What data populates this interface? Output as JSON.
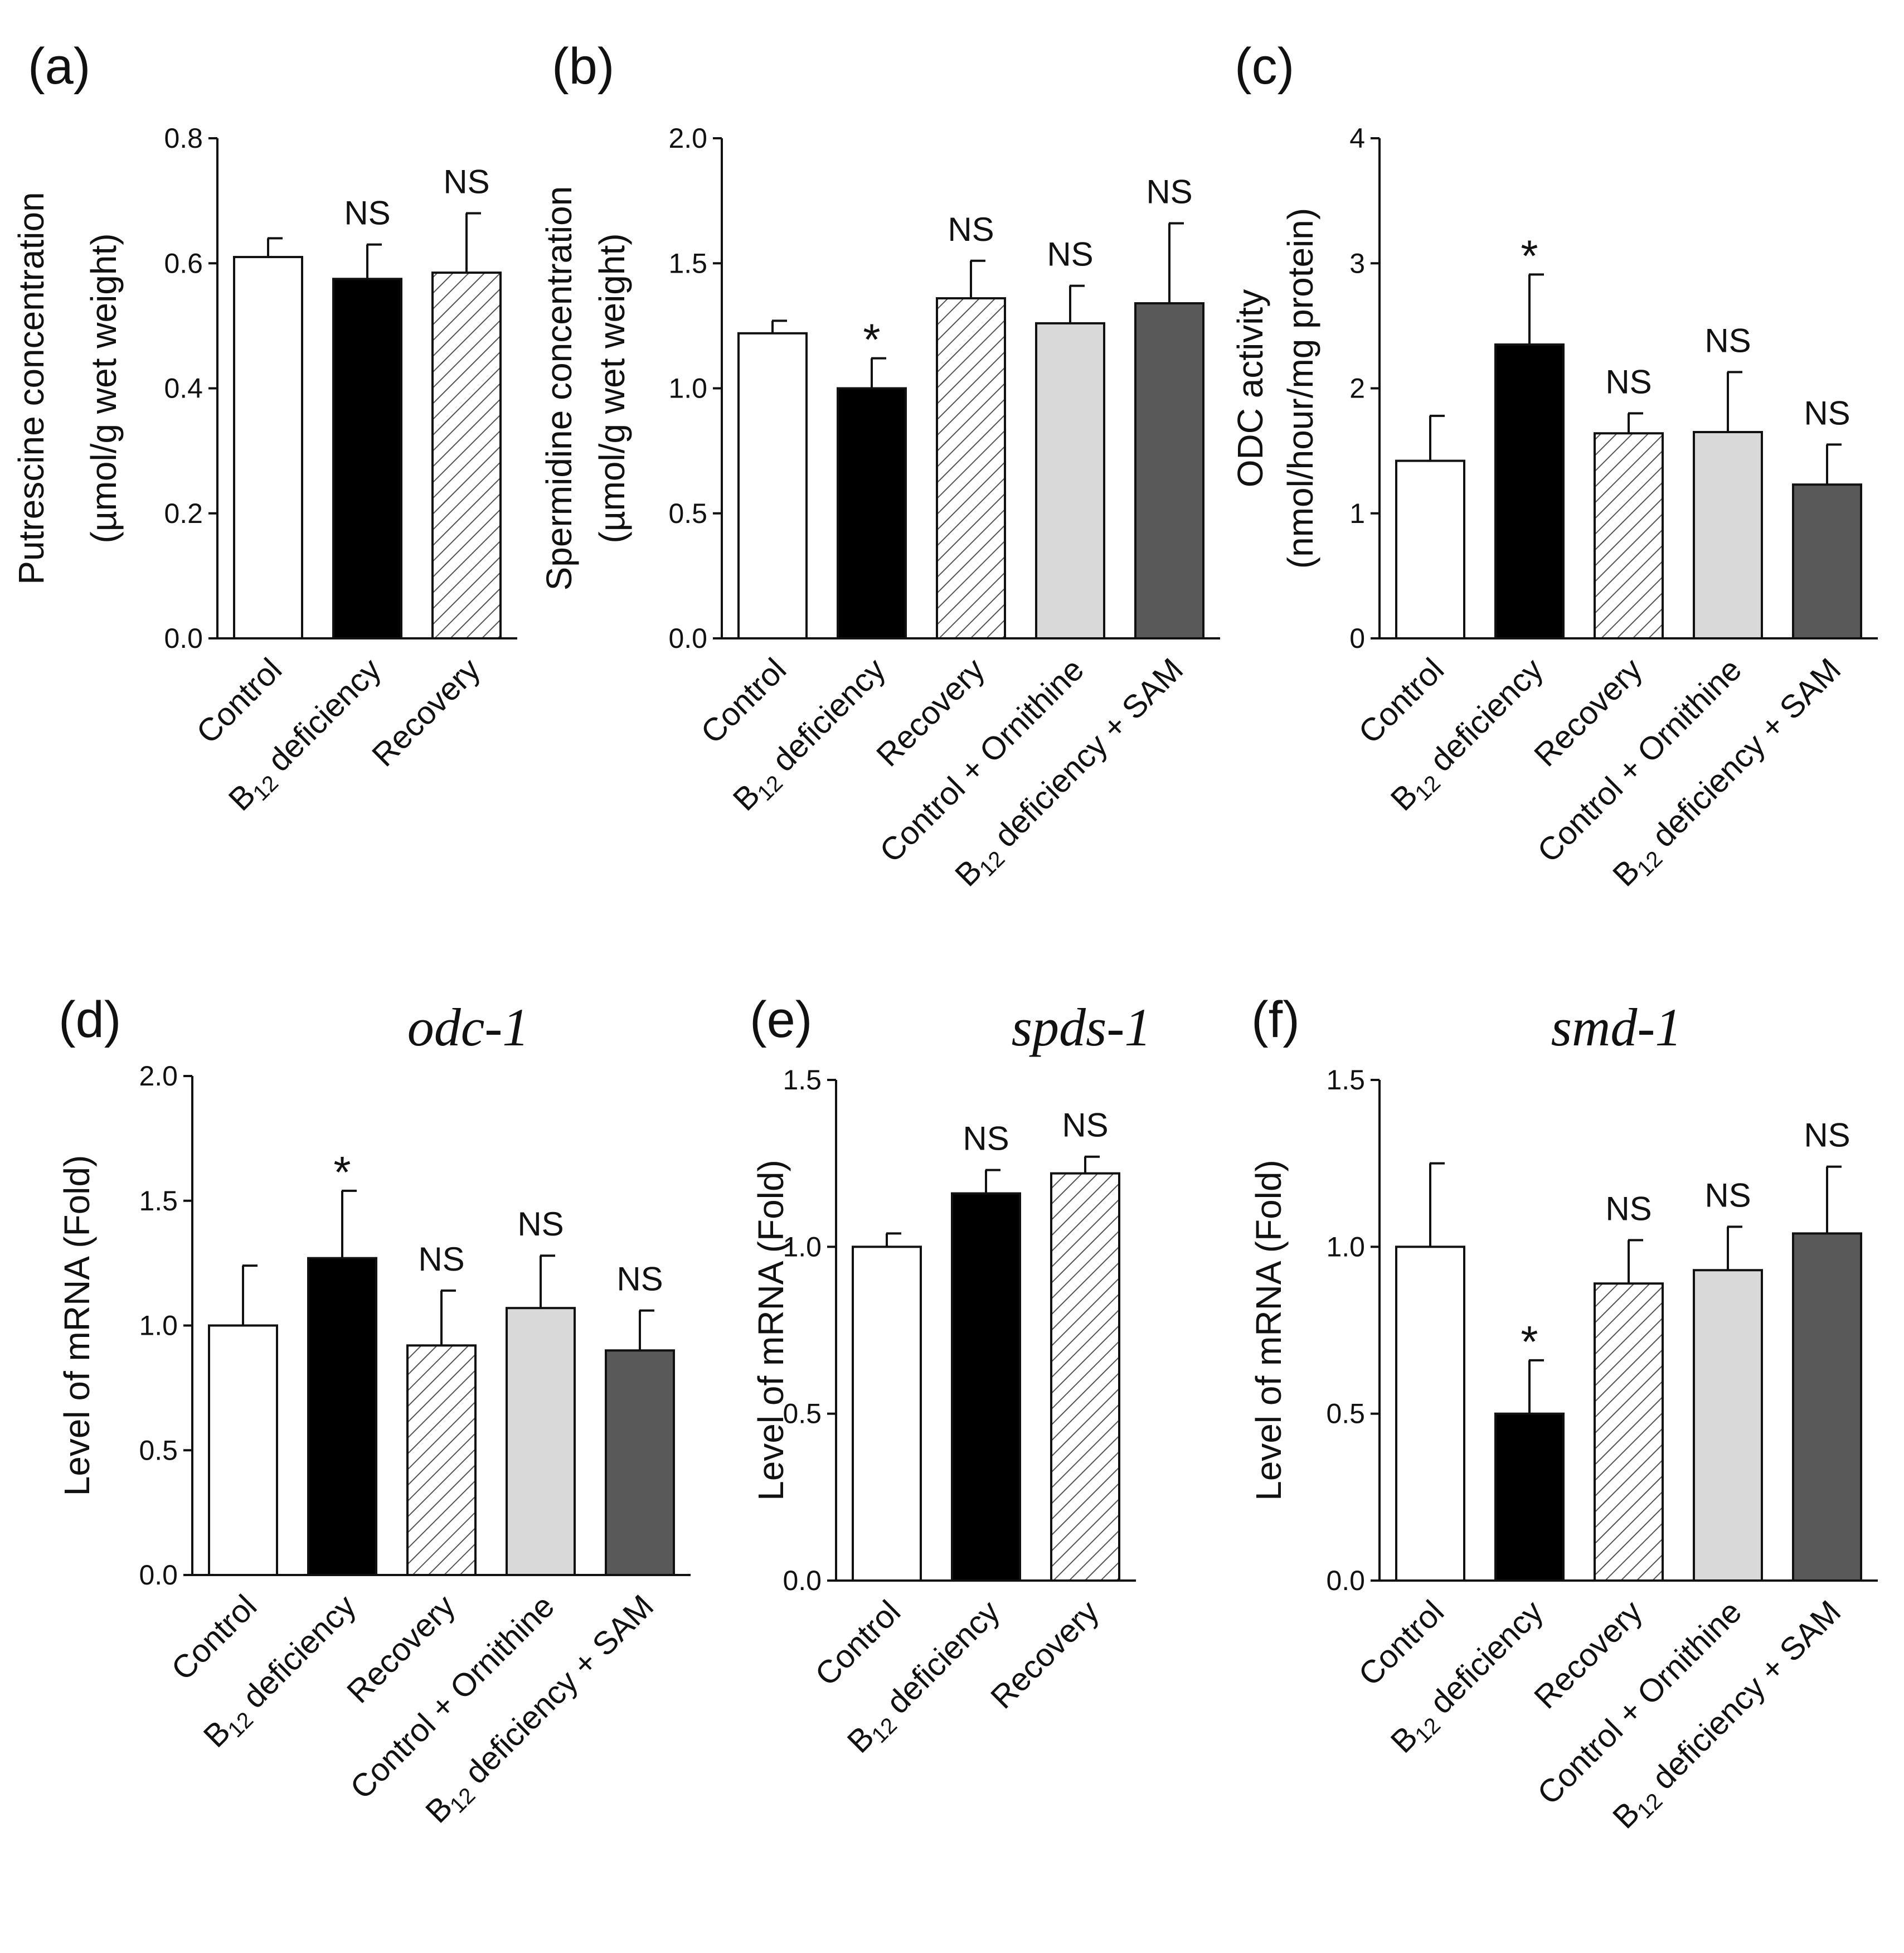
{
  "chart_data": [
    {
      "panel": "(a)",
      "type": "bar",
      "title": "",
      "ylabel": [
        "Putrescine  concentration",
        "(µmol/g wet weight)"
      ],
      "ylim": [
        0,
        0.8
      ],
      "yticks": [
        "0.0",
        "0.2",
        "0.4",
        "0.6",
        "0.8"
      ],
      "categories": [
        "Control",
        "B12 deficiency",
        "Recovery"
      ],
      "values": [
        0.61,
        0.575,
        0.585
      ],
      "errors": [
        0.03,
        0.055,
        0.095
      ],
      "fills": [
        "white",
        "black",
        "hatch"
      ],
      "annotations": [
        "",
        "NS",
        "NS"
      ]
    },
    {
      "panel": "(b)",
      "type": "bar",
      "title": "",
      "ylabel": [
        "Spermidine  concentration",
        "(µmol/g wet weight)"
      ],
      "ylim": [
        0,
        2.0
      ],
      "yticks": [
        "0.0",
        "0.5",
        "1.0",
        "1.5",
        "2.0"
      ],
      "categories": [
        "Control",
        "B12 deficiency",
        "Recovery",
        "Control + Ornithine",
        "B12 deficiency + SAM"
      ],
      "values": [
        1.22,
        1.0,
        1.36,
        1.26,
        1.34
      ],
      "errors": [
        0.05,
        0.12,
        0.15,
        0.15,
        0.32
      ],
      "fills": [
        "white",
        "black",
        "hatch",
        "lightgray",
        "darkgray"
      ],
      "annotations": [
        "",
        "*",
        "NS",
        "NS",
        "NS"
      ]
    },
    {
      "panel": "(c)",
      "type": "bar",
      "title": "",
      "ylabel": [
        "ODC activity",
        "(nmol/hour/mg protein)"
      ],
      "ylim": [
        0,
        4
      ],
      "yticks": [
        "0",
        "1",
        "2",
        "3",
        "4"
      ],
      "categories": [
        "Control",
        "B12 deficiency",
        "Recovery",
        "Control + Ornithine",
        "B12 deficiency + SAM"
      ],
      "values": [
        1.42,
        2.35,
        1.64,
        1.65,
        1.23
      ],
      "errors": [
        0.36,
        0.56,
        0.16,
        0.48,
        0.32
      ],
      "fills": [
        "white",
        "black",
        "hatch",
        "lightgray",
        "darkgray"
      ],
      "annotations": [
        "",
        "*",
        "NS",
        "NS",
        "NS"
      ]
    },
    {
      "panel": "(d)",
      "type": "bar",
      "title": "odc-1",
      "ylabel": [
        "Level of mRNA (Fold)"
      ],
      "ylim": [
        0,
        2.0
      ],
      "yticks": [
        "0.0",
        "0.5",
        "1.0",
        "1.5",
        "2.0"
      ],
      "categories": [
        "Control",
        "B12 deficiency",
        "Recovery",
        "Control + Ornithine",
        "B12 deficiency + SAM"
      ],
      "values": [
        1.0,
        1.27,
        0.92,
        1.07,
        0.9
      ],
      "errors": [
        0.24,
        0.27,
        0.22,
        0.21,
        0.16
      ],
      "fills": [
        "white",
        "black",
        "hatch",
        "lightgray",
        "darkgray"
      ],
      "annotations": [
        "",
        "*",
        "NS",
        "NS",
        "NS"
      ]
    },
    {
      "panel": "(e)",
      "type": "bar",
      "title": "spds-1",
      "ylabel": [
        "Level of mRNA (Fold)"
      ],
      "ylim": [
        0,
        1.5
      ],
      "yticks": [
        "0.0",
        "0.5",
        "1.0",
        "1.5"
      ],
      "categories": [
        "Control",
        "B12 deficiency",
        "Recovery"
      ],
      "values": [
        1.0,
        1.16,
        1.22
      ],
      "errors": [
        0.04,
        0.07,
        0.05
      ],
      "fills": [
        "white",
        "black",
        "hatch"
      ],
      "annotations": [
        "",
        "NS",
        "NS"
      ]
    },
    {
      "panel": "(f)",
      "type": "bar",
      "title": "smd-1",
      "ylabel": [
        "Level of mRNA (Fold)"
      ],
      "ylim": [
        0,
        1.5
      ],
      "yticks": [
        "0.0",
        "0.5",
        "1.0",
        "1.5"
      ],
      "categories": [
        "Control",
        "B12 deficiency",
        "Recovery",
        "Control + Ornithine",
        "B12 deficiency + SAM"
      ],
      "values": [
        1.0,
        0.5,
        0.89,
        0.93,
        1.04
      ],
      "errors": [
        0.25,
        0.16,
        0.13,
        0.13,
        0.2
      ],
      "fills": [
        "white",
        "black",
        "hatch",
        "lightgray",
        "darkgray"
      ],
      "annotations": [
        "",
        "*",
        "NS",
        "NS",
        "NS"
      ]
    }
  ],
  "colors": {
    "white": "#ffffff",
    "black": "#000000",
    "lightgray": "#d9d9d9",
    "darkgray": "#595959",
    "hatch_line": "#555555",
    "axis": "#111111"
  }
}
